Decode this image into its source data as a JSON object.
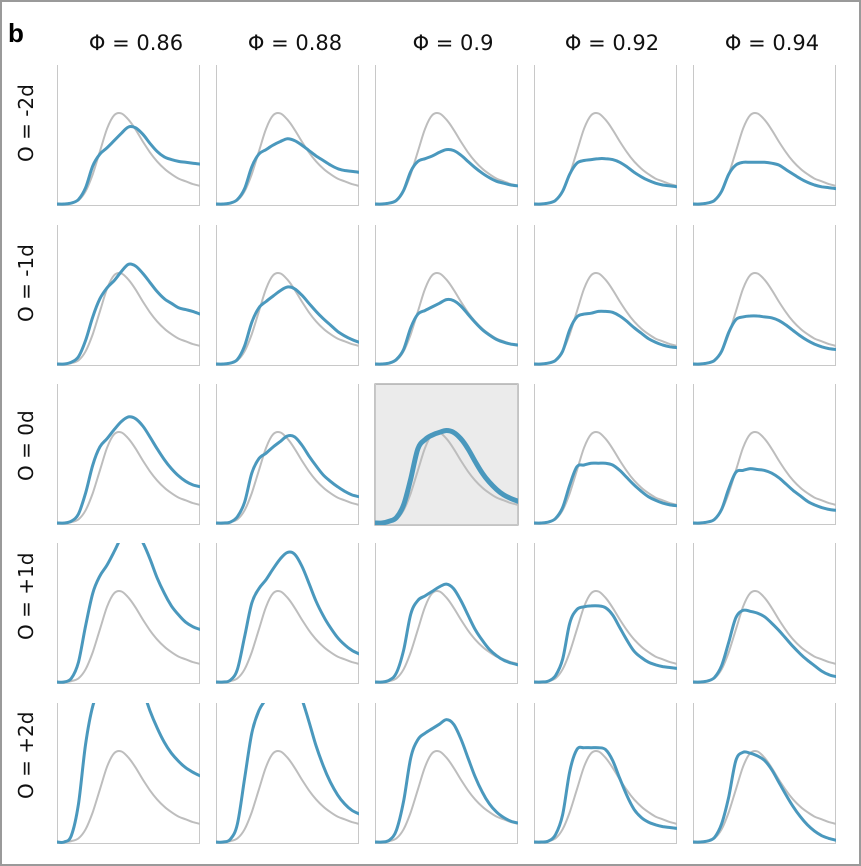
{
  "panel_label": "b",
  "chart_data": {
    "type": "line",
    "description_axes": "grid of small multiples; rows = O, columns = Φ",
    "columns": [
      "Φ = 0.86",
      "Φ = 0.88",
      "Φ = 0.9",
      "Φ = 0.92",
      "Φ = 0.94"
    ],
    "rows": [
      "O = -2d",
      "O = -1d",
      "O = 0d",
      "O = +1d",
      "O = +2d"
    ],
    "highlighted_cell": {
      "row": 2,
      "col": 2
    },
    "x": [
      0.0,
      0.05,
      0.1,
      0.15,
      0.2,
      0.25,
      0.3,
      0.35,
      0.4,
      0.45,
      0.5,
      0.55,
      0.6,
      0.65,
      0.7,
      0.75,
      0.8,
      0.85,
      0.9,
      0.95,
      1.0
    ],
    "ylim": [
      0,
      1
    ],
    "reference": {
      "name": "",
      "color": "#bdbdbd",
      "values": [
        0.0,
        0.0,
        0.01,
        0.04,
        0.14,
        0.33,
        0.58,
        0.83,
        0.98,
        1.0,
        0.93,
        0.82,
        0.69,
        0.57,
        0.47,
        0.39,
        0.33,
        0.28,
        0.25,
        0.22,
        0.2
      ]
    },
    "series_color": "#4a98bd",
    "cells": [
      [
        {
          "values": [
            0.0,
            0.0,
            0.01,
            0.05,
            0.18,
            0.42,
            0.55,
            0.62,
            0.7,
            0.78,
            0.85,
            0.84,
            0.77,
            0.67,
            0.58,
            0.52,
            0.49,
            0.47,
            0.46,
            0.45,
            0.44
          ]
        },
        {
          "values": [
            0.0,
            0.0,
            0.01,
            0.05,
            0.17,
            0.41,
            0.55,
            0.6,
            0.65,
            0.69,
            0.72,
            0.7,
            0.65,
            0.59,
            0.53,
            0.48,
            0.43,
            0.39,
            0.37,
            0.36,
            0.35
          ]
        },
        {
          "values": [
            0.0,
            0.0,
            0.01,
            0.04,
            0.15,
            0.36,
            0.47,
            0.5,
            0.53,
            0.57,
            0.6,
            0.59,
            0.54,
            0.47,
            0.4,
            0.34,
            0.29,
            0.25,
            0.23,
            0.21,
            0.2
          ]
        },
        {
          "values": [
            0.0,
            0.0,
            0.01,
            0.04,
            0.14,
            0.33,
            0.45,
            0.48,
            0.49,
            0.5,
            0.5,
            0.49,
            0.46,
            0.41,
            0.35,
            0.3,
            0.26,
            0.23,
            0.21,
            0.2,
            0.19
          ]
        },
        {
          "values": [
            0.0,
            0.0,
            0.01,
            0.04,
            0.14,
            0.33,
            0.43,
            0.46,
            0.46,
            0.46,
            0.46,
            0.45,
            0.43,
            0.38,
            0.33,
            0.28,
            0.24,
            0.21,
            0.19,
            0.18,
            0.17
          ]
        }
      ],
      [
        {
          "values": [
            0.0,
            0.0,
            0.02,
            0.08,
            0.26,
            0.52,
            0.72,
            0.84,
            0.92,
            1.02,
            1.1,
            1.08,
            1.0,
            0.9,
            0.8,
            0.72,
            0.67,
            0.62,
            0.6,
            0.58,
            0.55
          ]
        },
        {
          "values": [
            0.0,
            0.0,
            0.01,
            0.05,
            0.2,
            0.46,
            0.62,
            0.69,
            0.75,
            0.81,
            0.85,
            0.83,
            0.76,
            0.67,
            0.58,
            0.5,
            0.43,
            0.36,
            0.31,
            0.27,
            0.24
          ]
        },
        {
          "values": [
            0.0,
            0.0,
            0.01,
            0.05,
            0.16,
            0.4,
            0.55,
            0.59,
            0.63,
            0.67,
            0.71,
            0.7,
            0.64,
            0.55,
            0.46,
            0.38,
            0.32,
            0.27,
            0.24,
            0.22,
            0.21
          ]
        },
        {
          "values": [
            0.0,
            0.0,
            0.01,
            0.04,
            0.14,
            0.38,
            0.52,
            0.55,
            0.56,
            0.58,
            0.58,
            0.57,
            0.53,
            0.47,
            0.4,
            0.34,
            0.28,
            0.24,
            0.21,
            0.19,
            0.18
          ]
        },
        {
          "values": [
            0.0,
            0.0,
            0.01,
            0.04,
            0.14,
            0.35,
            0.49,
            0.52,
            0.53,
            0.53,
            0.52,
            0.51,
            0.48,
            0.43,
            0.37,
            0.31,
            0.26,
            0.22,
            0.19,
            0.17,
            0.16
          ]
        }
      ],
      [
        {
          "values": [
            0.0,
            0.0,
            0.02,
            0.1,
            0.33,
            0.64,
            0.84,
            0.93,
            1.03,
            1.12,
            1.17,
            1.15,
            1.07,
            0.95,
            0.82,
            0.7,
            0.6,
            0.52,
            0.46,
            0.42,
            0.4
          ]
        },
        {
          "values": [
            0.0,
            0.0,
            0.01,
            0.07,
            0.23,
            0.55,
            0.71,
            0.77,
            0.84,
            0.9,
            0.96,
            0.95,
            0.86,
            0.74,
            0.63,
            0.53,
            0.46,
            0.4,
            0.35,
            0.31,
            0.29
          ]
        },
        {
          "values": [
            0.0,
            0.0,
            0.02,
            0.06,
            0.2,
            0.49,
            0.82,
            0.92,
            0.97,
            1.0,
            1.02,
            1.0,
            0.93,
            0.82,
            0.68,
            0.55,
            0.45,
            0.37,
            0.31,
            0.27,
            0.24
          ]
        },
        {
          "values": [
            0.0,
            0.0,
            0.01,
            0.05,
            0.17,
            0.42,
            0.62,
            0.64,
            0.66,
            0.66,
            0.66,
            0.64,
            0.58,
            0.5,
            0.42,
            0.35,
            0.29,
            0.25,
            0.22,
            0.2,
            0.19
          ]
        },
        {
          "values": [
            0.0,
            0.0,
            0.01,
            0.04,
            0.15,
            0.38,
            0.56,
            0.58,
            0.6,
            0.59,
            0.58,
            0.55,
            0.5,
            0.43,
            0.36,
            0.3,
            0.24,
            0.2,
            0.17,
            0.15,
            0.14
          ]
        }
      ],
      [
        {
          "values": [
            0.0,
            0.0,
            0.04,
            0.22,
            0.62,
            0.98,
            1.17,
            1.29,
            1.44,
            1.6,
            1.72,
            1.67,
            1.54,
            1.36,
            1.15,
            0.98,
            0.84,
            0.74,
            0.66,
            0.61,
            0.58
          ]
        },
        {
          "values": [
            0.0,
            0.0,
            0.02,
            0.14,
            0.5,
            0.87,
            1.03,
            1.13,
            1.25,
            1.36,
            1.43,
            1.41,
            1.28,
            1.09,
            0.89,
            0.73,
            0.6,
            0.49,
            0.41,
            0.35,
            0.31
          ]
        },
        {
          "values": [
            0.0,
            0.0,
            0.02,
            0.1,
            0.35,
            0.75,
            0.9,
            0.95,
            1.0,
            1.05,
            1.08,
            1.03,
            0.9,
            0.74,
            0.58,
            0.46,
            0.36,
            0.29,
            0.24,
            0.21,
            0.19
          ]
        },
        {
          "values": [
            0.0,
            0.0,
            0.01,
            0.07,
            0.25,
            0.65,
            0.8,
            0.83,
            0.84,
            0.84,
            0.82,
            0.74,
            0.6,
            0.46,
            0.34,
            0.27,
            0.22,
            0.19,
            0.17,
            0.16,
            0.15
          ]
        },
        {
          "values": [
            0.0,
            0.0,
            0.01,
            0.05,
            0.18,
            0.44,
            0.71,
            0.79,
            0.78,
            0.76,
            0.72,
            0.65,
            0.57,
            0.48,
            0.39,
            0.31,
            0.24,
            0.18,
            0.12,
            0.08,
            0.06
          ]
        }
      ],
      [
        {
          "values": [
            0.0,
            0.0,
            0.07,
            0.42,
            1.08,
            1.5,
            1.68,
            1.82,
            2.0,
            2.1,
            2.05,
            1.9,
            1.68,
            1.45,
            1.26,
            1.1,
            0.98,
            0.89,
            0.82,
            0.77,
            0.73
          ]
        },
        {
          "values": [
            0.0,
            0.0,
            0.03,
            0.2,
            0.7,
            1.2,
            1.45,
            1.58,
            1.73,
            1.85,
            1.9,
            1.78,
            1.58,
            1.33,
            1.06,
            0.84,
            0.66,
            0.52,
            0.42,
            0.35,
            0.31
          ]
        },
        {
          "values": [
            0.0,
            0.0,
            0.02,
            0.13,
            0.45,
            0.93,
            1.13,
            1.2,
            1.25,
            1.3,
            1.35,
            1.3,
            1.14,
            0.93,
            0.72,
            0.55,
            0.42,
            0.33,
            0.27,
            0.23,
            0.21
          ]
        },
        {
          "values": [
            0.0,
            0.0,
            0.01,
            0.08,
            0.3,
            0.78,
            1.02,
            1.04,
            1.04,
            1.04,
            1.02,
            0.9,
            0.7,
            0.51,
            0.36,
            0.27,
            0.22,
            0.19,
            0.17,
            0.16,
            0.15
          ]
        },
        {
          "values": [
            0.0,
            0.0,
            0.01,
            0.05,
            0.2,
            0.5,
            0.9,
            0.99,
            0.98,
            0.95,
            0.9,
            0.8,
            0.66,
            0.52,
            0.39,
            0.28,
            0.19,
            0.12,
            0.07,
            0.04,
            0.02
          ]
        }
      ]
    ]
  }
}
